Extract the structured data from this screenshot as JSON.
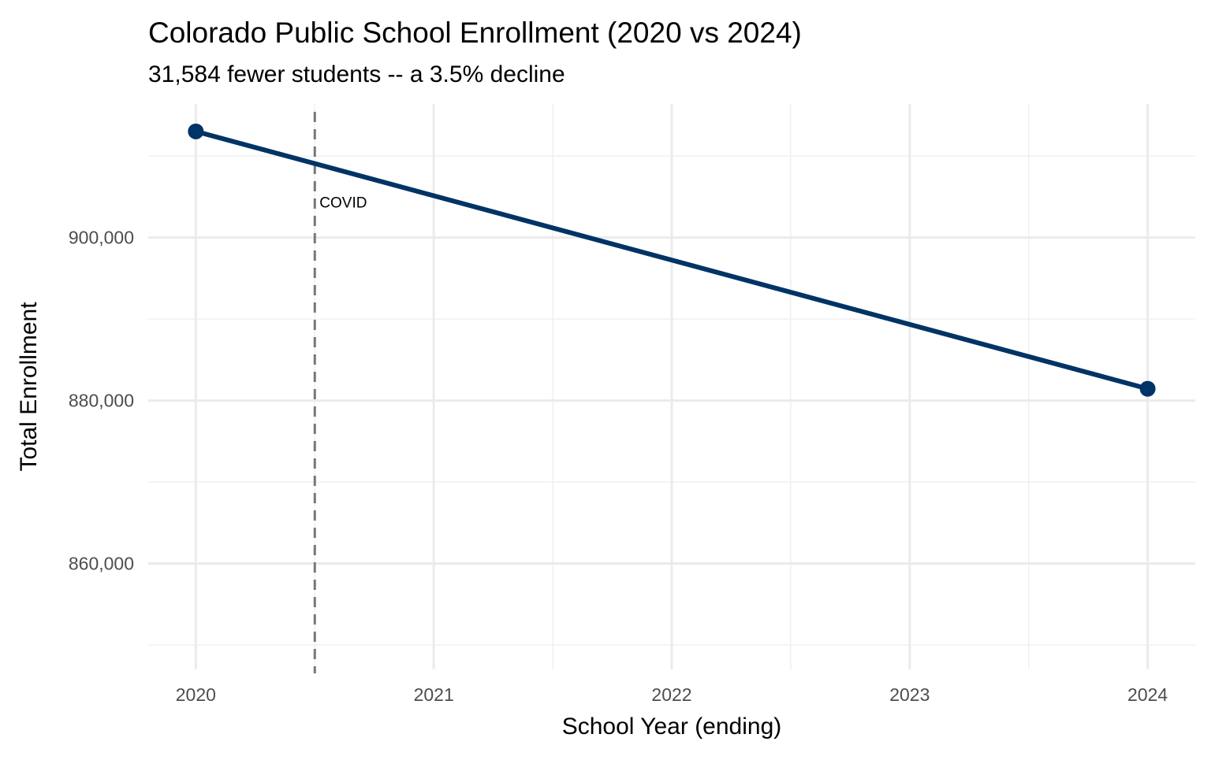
{
  "chart_data": {
    "type": "line",
    "title": "Colorado Public School Enrollment (2020 vs 2024)",
    "subtitle": "31,584 fewer students -- a 3.5% decline",
    "xlabel": "School Year (ending)",
    "ylabel": "Total Enrollment",
    "x": [
      2020,
      2024
    ],
    "series": [
      {
        "name": "Total Enrollment",
        "values": [
          913030,
          881446
        ],
        "color": "#003366"
      }
    ],
    "xlim": [
      2019.8,
      2024.2
    ],
    "ylim": [
      847000,
      916400
    ],
    "x_ticks": [
      2020,
      2021,
      2022,
      2023,
      2024
    ],
    "x_tick_labels": [
      "2020",
      "2021",
      "2022",
      "2023",
      "2024"
    ],
    "y_ticks": [
      860000,
      880000,
      900000
    ],
    "y_tick_labels": [
      "860,000",
      "880,000",
      "900,000"
    ],
    "y_minor": [
      850000,
      870000,
      890000,
      910000
    ],
    "x_minor": [
      2020.5,
      2021.5,
      2022.5,
      2023.5
    ],
    "annotations": [
      {
        "type": "vline",
        "x": 2020.5,
        "label": "COVID",
        "label_y": 904000,
        "color": "#777777"
      }
    ],
    "grid": true
  }
}
